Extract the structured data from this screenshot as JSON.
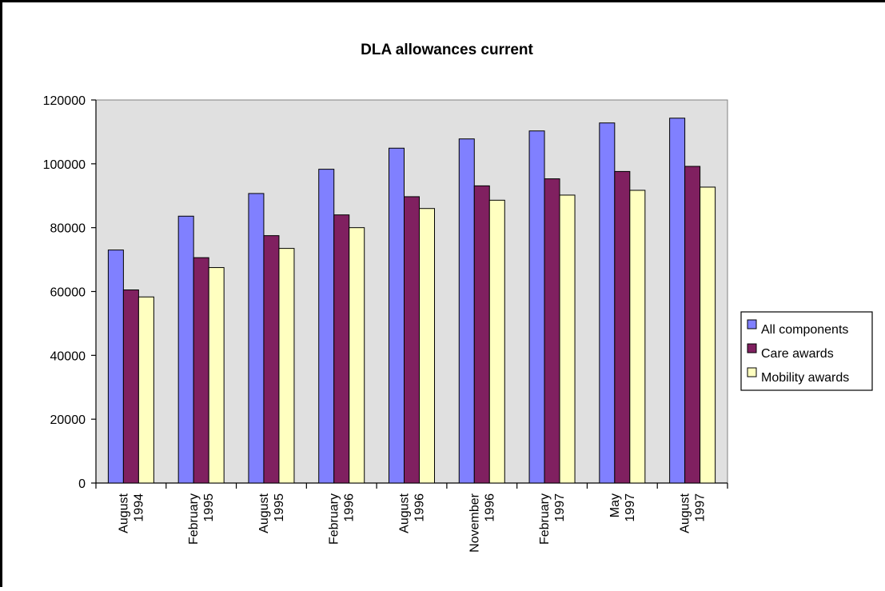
{
  "chart_data": {
    "type": "bar",
    "title": "DLA allowances current",
    "xlabel": "",
    "ylabel": "",
    "ylim": [
      0,
      120000
    ],
    "yticks": [
      0,
      20000,
      40000,
      60000,
      80000,
      100000,
      120000
    ],
    "grid": false,
    "legend_position": "right",
    "categories": [
      "August\n1994",
      "February\n1995",
      "August\n1995",
      "February\n1996",
      "August\n1996",
      "November\n1996",
      "February\n1997",
      "May\n1997",
      "August\n1997"
    ],
    "series": [
      {
        "name": "All components",
        "color": "#8080ff",
        "values": [
          73000,
          83600,
          90700,
          98300,
          104900,
          107800,
          110300,
          112800,
          114300
        ]
      },
      {
        "name": "Care awards",
        "color": "#802060",
        "values": [
          60500,
          70600,
          77500,
          84000,
          89700,
          93100,
          95300,
          97600,
          99200
        ]
      },
      {
        "name": "Mobility awards",
        "color": "#ffffc0",
        "values": [
          58300,
          67500,
          73500,
          80000,
          86000,
          88600,
          90200,
          91700,
          92700
        ]
      }
    ],
    "plot_background": "#e0e0e0"
  }
}
